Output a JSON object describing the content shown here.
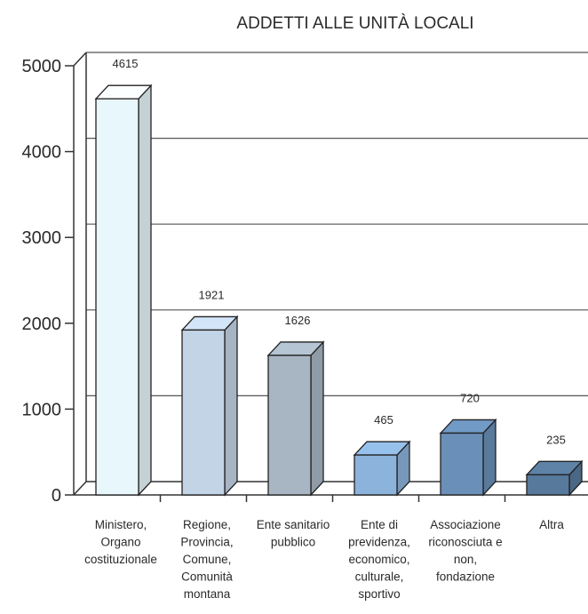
{
  "chart_data": {
    "type": "bar",
    "title": "ADDETTI ALLE UNITÀ LOCALI",
    "categories": [
      [
        "Ministero,",
        "Organo",
        "costituzionale"
      ],
      [
        "Regione,",
        "Provincia,",
        "Comune,",
        "Comunità",
        "montana"
      ],
      [
        "Ente sanitario",
        "pubblico"
      ],
      [
        "Ente di",
        "previdenza,",
        "economico,",
        "culturale,",
        "sportivo"
      ],
      [
        "Associazione",
        "riconosciuta e",
        "non,",
        "fondazione"
      ],
      [
        "Altra"
      ]
    ],
    "values": [
      4615,
      1921,
      1626,
      465,
      720,
      235
    ],
    "data_labels": [
      "4615",
      "1921",
      "1626",
      "465",
      "720",
      "235"
    ],
    "ylim": [
      0,
      5000
    ],
    "yticks": [
      "0",
      "1000",
      "2000",
      "3000",
      "4000",
      "5000"
    ],
    "grid": true,
    "bar_colors": [
      "#e8f7fb",
      "#c3d4e6",
      "#a8b6c4",
      "#8cb3db",
      "#6a8fb8",
      "#57799b"
    ]
  }
}
